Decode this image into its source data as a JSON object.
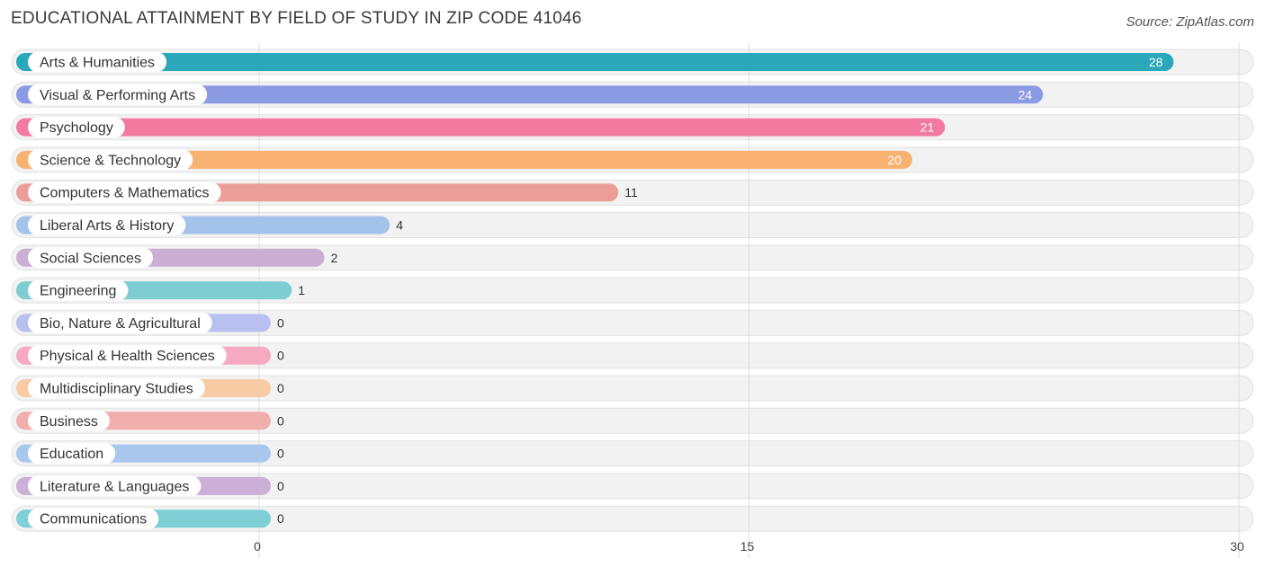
{
  "header": {
    "title": "EDUCATIONAL ATTAINMENT BY FIELD OF STUDY IN ZIP CODE 41046",
    "source": "Source: ZipAtlas.com"
  },
  "chart_data": {
    "type": "bar",
    "orientation": "horizontal",
    "title": "EDUCATIONAL ATTAINMENT BY FIELD OF STUDY IN ZIP CODE 41046",
    "xlabel": "",
    "ylabel": "",
    "xlim": [
      0,
      30
    ],
    "xticks": [
      0,
      15,
      30
    ],
    "grid": true,
    "categories": [
      "Arts & Humanities",
      "Visual & Performing Arts",
      "Psychology",
      "Science & Technology",
      "Computers & Mathematics",
      "Liberal Arts & History",
      "Social Sciences",
      "Engineering",
      "Bio, Nature & Agricultural",
      "Physical & Health Sciences",
      "Multidisciplinary Studies",
      "Business",
      "Education",
      "Literature & Languages",
      "Communications"
    ],
    "values": [
      28,
      24,
      21,
      20,
      11,
      4,
      2,
      1,
      0,
      0,
      0,
      0,
      0,
      0,
      0
    ],
    "colors": [
      "#2aa7b8",
      "#8b9be3",
      "#f27aa1",
      "#f7b272",
      "#eb9e97",
      "#a4c3ea",
      "#caaed4",
      "#7ecdd3",
      "#b7c0ee",
      "#f6a9c1",
      "#f8cba5",
      "#f1aeac",
      "#a9c6ec",
      "#cbafd6",
      "#7ecfd6"
    ]
  }
}
